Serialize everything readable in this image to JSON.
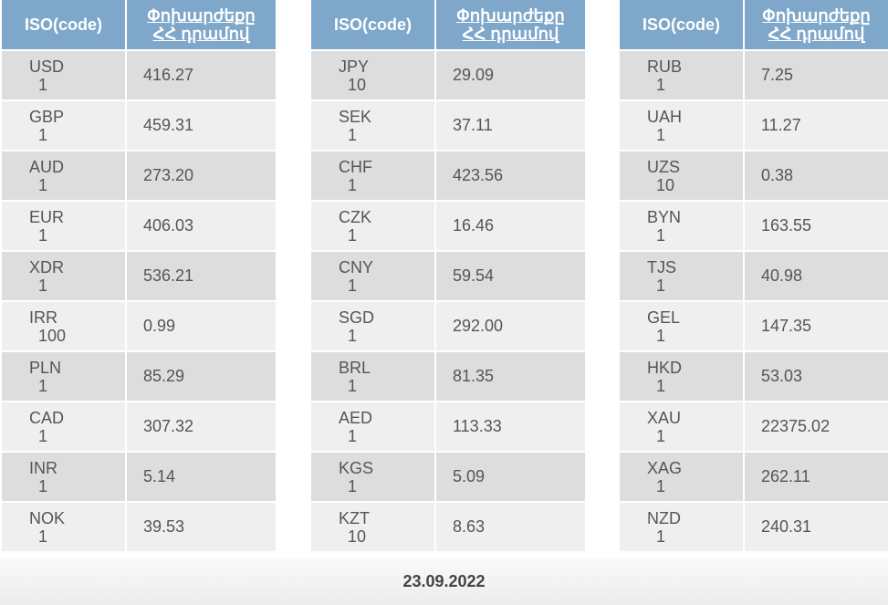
{
  "tables": [
    {
      "header": {
        "code": "ISO(code)",
        "rate": [
          "Փոխարժեքը",
          "ՀՀ դրամով"
        ]
      },
      "rows": [
        [
          "USD",
          "1",
          "416.27"
        ],
        [
          "GBP",
          "1",
          "459.31"
        ],
        [
          "AUD",
          "1",
          "273.20"
        ],
        [
          "EUR",
          "1",
          "406.03"
        ],
        [
          "XDR",
          "1",
          "536.21"
        ],
        [
          "IRR",
          "100",
          "0.99"
        ],
        [
          "PLN",
          "1",
          "85.29"
        ],
        [
          "CAD",
          "1",
          "307.32"
        ],
        [
          "INR",
          "1",
          "5.14"
        ],
        [
          "NOK",
          "1",
          "39.53"
        ]
      ]
    },
    {
      "header": {
        "code": "ISO(code)",
        "rate": [
          "Փոխարժեքը",
          "ՀՀ դրամով"
        ]
      },
      "rows": [
        [
          "JPY",
          "10",
          "29.09"
        ],
        [
          "SEK",
          "1",
          "37.11"
        ],
        [
          "CHF",
          "1",
          "423.56"
        ],
        [
          "CZK",
          "1",
          "16.46"
        ],
        [
          "CNY",
          "1",
          "59.54"
        ],
        [
          "SGD",
          "1",
          "292.00"
        ],
        [
          "BRL",
          "1",
          "81.35"
        ],
        [
          "AED",
          "1",
          "113.33"
        ],
        [
          "KGS",
          "1",
          "5.09"
        ],
        [
          "KZT",
          "10",
          "8.63"
        ]
      ]
    },
    {
      "header": {
        "code": "ISO(code)",
        "rate": [
          "Փոխարժեքը",
          "ՀՀ դրամով"
        ]
      },
      "rows": [
        [
          "RUB",
          "1",
          "7.25"
        ],
        [
          "UAH",
          "1",
          "11.27"
        ],
        [
          "UZS",
          "10",
          "0.38"
        ],
        [
          "BYN",
          "1",
          "163.55"
        ],
        [
          "TJS",
          "1",
          "40.98"
        ],
        [
          "GEL",
          "1",
          "147.35"
        ],
        [
          "HKD",
          "1",
          "53.03"
        ],
        [
          "XAU",
          "1",
          "22375.02"
        ],
        [
          "XAG",
          "1",
          "262.11"
        ],
        [
          "NZD",
          "1",
          "240.31"
        ]
      ]
    }
  ],
  "date": "23.09.2022"
}
